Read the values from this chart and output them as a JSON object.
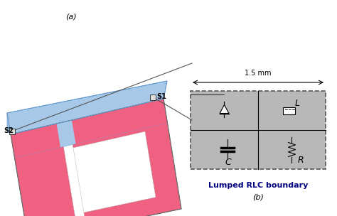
{
  "fig_width": 4.74,
  "fig_height": 3.04,
  "dpi": 100,
  "background_color": "#ffffff",
  "label_a": "(a)",
  "label_b": "(b)",
  "s1_label": "S1",
  "s2_label": "S2",
  "dimension_label": "1.5 mm",
  "rlc_title": "Lumped RLC boundary",
  "pink_color": "#F06080",
  "blue_color": "#A8C8E8",
  "white_color": "#ffffff",
  "gray_color": "#B0B0B0",
  "dark_gray": "#808080",
  "dashed_border": "#555555",
  "arrow_color": "#333333",
  "text_color": "#000000",
  "italic_L": "L",
  "italic_C": "C",
  "italic_R": "R"
}
